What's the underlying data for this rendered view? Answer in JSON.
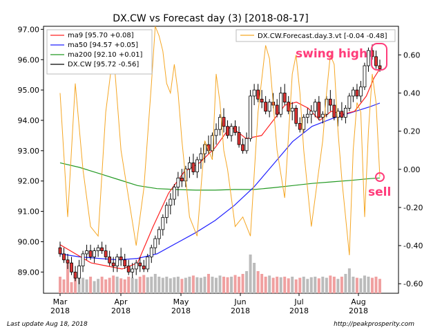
{
  "chart_data": {
    "type": "candlestick",
    "title": "DX.CW vs Forecast day (3)  [2018-08-17]",
    "x_tick_labels": [
      {
        "month": "Mar",
        "year": "2018"
      },
      {
        "month": "Apr",
        "year": "2018"
      },
      {
        "month": "May",
        "year": "2018"
      },
      {
        "month": "Jun",
        "year": "2018"
      },
      {
        "month": "Jul",
        "year": "2018"
      },
      {
        "month": "Aug",
        "year": "2018"
      }
    ],
    "y_left": {
      "range": [
        88.3,
        97.1
      ],
      "ticks": [
        "89.00",
        "90.00",
        "91.00",
        "92.00",
        "93.00",
        "94.00",
        "95.00",
        "96.00",
        "97.00"
      ]
    },
    "y_right": {
      "range": [
        -0.65,
        0.75
      ],
      "ticks": [
        "-0.60",
        "-0.40",
        "-0.20",
        "0.00",
        "0.20",
        "0.40",
        "0.60"
      ]
    },
    "legend_left": [
      {
        "label": "ma9 [95.70 +0.08]",
        "color": "#ff2020"
      },
      {
        "label": "ma50 [94.57 +0.05]",
        "color": "#2020ff"
      },
      {
        "label": "ma200 [92.10 +0.01]",
        "color": "#229922"
      },
      {
        "label": "DX.CW [95.72 -0.56]",
        "color": "#000000"
      }
    ],
    "legend_right": [
      {
        "label": "DX.CW.Forecast.day.3.vt [-0.04 -0.48]",
        "color": "#f5a623"
      }
    ],
    "colors": {
      "up": "#ffffff",
      "down": "#dd3333",
      "volume_up": "#bbbbbb",
      "volume_down": "#f0a0a0",
      "forecast": "#f5a623",
      "annotation": "#ff3b7a"
    },
    "annotations": [
      {
        "text": "swing high",
        "x_day": 162,
        "y": 96.1
      },
      {
        "text": "sell",
        "x_day": 161,
        "y": -0.04
      }
    ],
    "footer_left": "Last update Aug 18, 2018",
    "footer_right": "http://peakprosperity.com",
    "ma200_points": [
      [
        0,
        92.6
      ],
      [
        10,
        92.45
      ],
      [
        20,
        92.25
      ],
      [
        30,
        92.05
      ],
      [
        40,
        91.85
      ],
      [
        50,
        91.75
      ],
      [
        60,
        91.72
      ],
      [
        70,
        91.7
      ],
      [
        80,
        91.7
      ],
      [
        90,
        91.72
      ],
      [
        100,
        91.72
      ],
      [
        110,
        91.78
      ],
      [
        120,
        91.85
      ],
      [
        130,
        91.92
      ],
      [
        140,
        91.97
      ],
      [
        150,
        92.02
      ],
      [
        160,
        92.08
      ],
      [
        165,
        92.1
      ]
    ],
    "ma50_points": [
      [
        0,
        89.6
      ],
      [
        10,
        89.5
      ],
      [
        20,
        89.45
      ],
      [
        30,
        89.4
      ],
      [
        40,
        89.45
      ],
      [
        50,
        89.6
      ],
      [
        60,
        89.95
      ],
      [
        70,
        90.3
      ],
      [
        80,
        90.7
      ],
      [
        90,
        91.2
      ],
      [
        100,
        91.8
      ],
      [
        110,
        92.55
      ],
      [
        120,
        93.3
      ],
      [
        130,
        93.8
      ],
      [
        140,
        94.05
      ],
      [
        150,
        94.25
      ],
      [
        160,
        94.45
      ],
      [
        165,
        94.57
      ]
    ],
    "ma9_points": [
      [
        0,
        89.9
      ],
      [
        8,
        89.6
      ],
      [
        16,
        89.3
      ],
      [
        24,
        89.2
      ],
      [
        32,
        89.1
      ],
      [
        40,
        89.3
      ],
      [
        48,
        90.5
      ],
      [
        56,
        91.6
      ],
      [
        64,
        92.3
      ],
      [
        72,
        92.6
      ],
      [
        80,
        93.1
      ],
      [
        88,
        93.8
      ],
      [
        96,
        93.4
      ],
      [
        104,
        93.5
      ],
      [
        110,
        94.0
      ],
      [
        116,
        94.5
      ],
      [
        122,
        94.6
      ],
      [
        128,
        94.4
      ],
      [
        134,
        94.0
      ],
      [
        140,
        94.3
      ],
      [
        146,
        94.2
      ],
      [
        152,
        94.3
      ],
      [
        158,
        94.8
      ],
      [
        162,
        95.4
      ],
      [
        165,
        95.7
      ]
    ],
    "candles": [
      [
        1,
        89.8,
        90.0,
        89.5,
        89.6
      ],
      [
        2,
        89.6,
        89.8,
        89.3,
        89.4
      ],
      [
        3,
        89.4,
        89.6,
        89.1,
        89.3
      ],
      [
        4,
        89.3,
        89.5,
        88.9,
        89.0
      ],
      [
        5,
        89.0,
        89.2,
        88.7,
        88.8
      ],
      [
        6,
        88.8,
        89.4,
        88.6,
        89.2
      ],
      [
        7,
        89.2,
        89.7,
        89.0,
        89.6
      ],
      [
        8,
        89.6,
        89.9,
        89.4,
        89.7
      ],
      [
        9,
        89.7,
        89.9,
        89.4,
        89.5
      ],
      [
        10,
        89.5,
        89.8,
        89.3,
        89.7
      ],
      [
        11,
        89.7,
        89.9,
        89.5,
        89.8
      ],
      [
        12,
        89.8,
        90.0,
        89.6,
        89.7
      ],
      [
        13,
        89.7,
        89.9,
        89.4,
        89.5
      ],
      [
        14,
        89.5,
        89.7,
        89.2,
        89.3
      ],
      [
        15,
        89.3,
        89.5,
        89.0,
        89.2
      ],
      [
        16,
        89.2,
        89.6,
        89.0,
        89.5
      ],
      [
        17,
        89.5,
        89.8,
        89.2,
        89.4
      ],
      [
        18,
        89.4,
        89.6,
        89.1,
        89.2
      ],
      [
        19,
        89.2,
        89.4,
        88.9,
        89.0
      ],
      [
        20,
        89.0,
        89.3,
        88.8,
        89.1
      ],
      [
        21,
        89.1,
        89.4,
        88.9,
        89.3
      ],
      [
        22,
        89.3,
        89.5,
        89.0,
        89.2
      ],
      [
        23,
        89.2,
        89.4,
        89.0,
        89.1
      ],
      [
        24,
        89.1,
        89.6,
        89.0,
        89.5
      ],
      [
        25,
        89.5,
        89.9,
        89.3,
        89.8
      ],
      [
        26,
        89.8,
        90.2,
        89.6,
        90.1
      ],
      [
        27,
        90.1,
        90.5,
        89.9,
        90.4
      ],
      [
        28,
        90.4,
        90.9,
        90.2,
        90.8
      ],
      [
        29,
        90.8,
        91.3,
        90.6,
        91.2
      ],
      [
        30,
        91.2,
        91.6,
        90.9,
        91.4
      ],
      [
        31,
        91.4,
        91.9,
        91.2,
        91.8
      ],
      [
        32,
        91.8,
        92.3,
        91.5,
        92.1
      ],
      [
        33,
        92.1,
        92.4,
        91.8,
        92.0
      ],
      [
        34,
        92.0,
        92.5,
        91.8,
        92.4
      ],
      [
        35,
        92.4,
        92.8,
        92.1,
        92.6
      ],
      [
        36,
        92.6,
        92.9,
        92.2,
        92.3
      ],
      [
        37,
        92.3,
        92.8,
        92.1,
        92.7
      ],
      [
        38,
        92.7,
        93.1,
        92.4,
        92.9
      ],
      [
        39,
        92.9,
        93.3,
        92.6,
        93.2
      ],
      [
        40,
        93.2,
        93.5,
        92.9,
        93.0
      ],
      [
        41,
        93.0,
        93.6,
        92.8,
        93.5
      ],
      [
        42,
        93.5,
        93.9,
        93.2,
        93.7
      ],
      [
        43,
        93.7,
        94.2,
        93.5,
        94.1
      ],
      [
        44,
        94.1,
        94.4,
        93.6,
        93.8
      ],
      [
        45,
        93.8,
        94.0,
        93.4,
        93.5
      ],
      [
        46,
        93.5,
        93.9,
        93.3,
        93.8
      ],
      [
        47,
        93.8,
        94.0,
        93.5,
        93.6
      ],
      [
        48,
        93.6,
        93.8,
        93.1,
        93.2
      ],
      [
        49,
        93.2,
        93.4,
        92.9,
        93.0
      ],
      [
        50,
        93.0,
        93.6,
        92.9,
        93.4
      ],
      [
        51,
        93.4,
        95.0,
        93.3,
        94.8
      ],
      [
        52,
        94.8,
        95.2,
        94.5,
        95.0
      ],
      [
        53,
        95.0,
        95.2,
        94.6,
        94.7
      ],
      [
        54,
        94.7,
        95.0,
        94.4,
        94.6
      ],
      [
        55,
        94.6,
        94.8,
        94.2,
        94.3
      ],
      [
        56,
        94.3,
        94.7,
        94.1,
        94.6
      ],
      [
        57,
        94.6,
        94.9,
        94.4,
        94.5
      ],
      [
        58,
        94.5,
        94.7,
        94.1,
        94.2
      ],
      [
        59,
        94.2,
        95.1,
        94.1,
        94.9
      ],
      [
        60,
        94.9,
        95.2,
        94.5,
        94.6
      ],
      [
        61,
        94.6,
        94.8,
        94.2,
        94.3
      ],
      [
        62,
        94.3,
        94.6,
        94.0,
        94.4
      ],
      [
        63,
        94.4,
        94.5,
        93.8,
        93.9
      ],
      [
        64,
        93.9,
        94.1,
        93.6,
        93.7
      ],
      [
        65,
        93.7,
        94.2,
        93.6,
        94.1
      ],
      [
        66,
        94.1,
        94.4,
        93.9,
        94.2
      ],
      [
        67,
        94.2,
        94.5,
        93.9,
        94.3
      ],
      [
        68,
        94.3,
        94.7,
        94.1,
        94.6
      ],
      [
        69,
        94.6,
        94.8,
        94.0,
        94.1
      ],
      [
        70,
        94.1,
        94.3,
        93.9,
        94.2
      ],
      [
        71,
        94.2,
        94.8,
        94.1,
        94.7
      ],
      [
        72,
        94.7,
        95.0,
        94.3,
        94.5
      ],
      [
        73,
        94.5,
        94.7,
        94.0,
        94.1
      ],
      [
        74,
        94.1,
        94.4,
        93.8,
        94.3
      ],
      [
        75,
        94.3,
        94.6,
        94.0,
        94.1
      ],
      [
        76,
        94.1,
        94.5,
        93.9,
        94.4
      ],
      [
        77,
        94.4,
        94.9,
        94.3,
        94.8
      ],
      [
        78,
        94.8,
        95.1,
        94.6,
        95.0
      ],
      [
        79,
        95.0,
        95.2,
        94.7,
        94.8
      ],
      [
        80,
        94.8,
        95.3,
        94.6,
        95.1
      ],
      [
        81,
        95.1,
        95.9,
        95.0,
        95.8
      ],
      [
        82,
        95.8,
        96.4,
        95.6,
        96.3
      ],
      [
        83,
        96.3,
        96.5,
        96.0,
        96.1
      ],
      [
        84,
        96.1,
        96.3,
        95.7,
        95.8
      ],
      [
        85,
        95.8,
        96.0,
        95.6,
        95.7
      ]
    ],
    "volume": [
      0.3,
      0.25,
      0.55,
      0.2,
      0.35,
      0.3,
      0.28,
      0.25,
      0.3,
      0.22,
      0.26,
      0.3,
      0.25,
      0.28,
      0.32,
      0.3,
      0.27,
      0.25,
      0.3,
      0.28,
      0.26,
      0.3,
      0.33,
      0.29,
      0.3,
      0.35,
      0.3,
      0.28,
      0.3,
      0.27,
      0.29,
      0.3,
      0.26,
      0.28,
      0.3,
      0.32,
      0.29,
      0.28,
      0.3,
      0.35,
      0.3,
      0.28,
      0.32,
      0.3,
      0.29,
      0.3,
      0.33,
      0.3,
      0.35,
      0.4,
      0.7,
      0.55,
      0.4,
      0.35,
      0.3,
      0.32,
      0.28,
      0.3,
      0.29,
      0.3,
      0.27,
      0.3,
      0.25,
      0.28,
      0.3,
      0.26,
      0.29,
      0.3,
      0.27,
      0.3,
      0.28,
      0.32,
      0.3,
      0.26,
      0.3,
      0.35,
      0.45,
      0.3,
      0.28,
      0.27,
      0.32,
      0.3,
      0.28,
      0.3,
      0.26
    ],
    "forecast_points": [
      [
        1,
        0.4
      ],
      [
        3,
        -0.25
      ],
      [
        5,
        0.45
      ],
      [
        7,
        0.0
      ],
      [
        9,
        -0.3
      ],
      [
        11,
        -0.35
      ],
      [
        13,
        0.3
      ],
      [
        15,
        0.62
      ],
      [
        17,
        0.1
      ],
      [
        19,
        -0.15
      ],
      [
        21,
        -0.4
      ],
      [
        23,
        -0.1
      ],
      [
        25,
        0.45
      ],
      [
        26,
        0.75
      ],
      [
        27,
        0.7
      ],
      [
        28,
        0.62
      ],
      [
        29,
        0.45
      ],
      [
        30,
        0.4
      ],
      [
        31,
        0.55
      ],
      [
        32,
        0.4
      ],
      [
        33,
        0.15
      ],
      [
        35,
        -0.25
      ],
      [
        37,
        -0.35
      ],
      [
        39,
        0.15
      ],
      [
        41,
        0.05
      ],
      [
        42,
        0.5
      ],
      [
        43,
        0.35
      ],
      [
        44,
        0.1
      ],
      [
        45,
        0.0
      ],
      [
        47,
        -0.3
      ],
      [
        49,
        -0.25
      ],
      [
        51,
        -0.35
      ],
      [
        53,
        0.3
      ],
      [
        55,
        0.65
      ],
      [
        56,
        0.58
      ],
      [
        58,
        0.1
      ],
      [
        60,
        -0.15
      ],
      [
        62,
        0.5
      ],
      [
        63,
        0.6
      ],
      [
        64,
        0.4
      ],
      [
        65,
        0.1
      ],
      [
        67,
        -0.3
      ],
      [
        68,
        -0.15
      ],
      [
        70,
        0.15
      ],
      [
        71,
        0.4
      ],
      [
        72,
        0.6
      ],
      [
        73,
        0.55
      ],
      [
        74,
        0.2
      ],
      [
        75,
        -0.05
      ],
      [
        77,
        -0.45
      ],
      [
        78,
        0.1
      ],
      [
        79,
        0.35
      ],
      [
        80,
        0.3
      ],
      [
        81,
        -0.25
      ],
      [
        82,
        0.2
      ],
      [
        83,
        0.5
      ],
      [
        84,
        0.35
      ],
      [
        85,
        -0.04
      ]
    ]
  }
}
